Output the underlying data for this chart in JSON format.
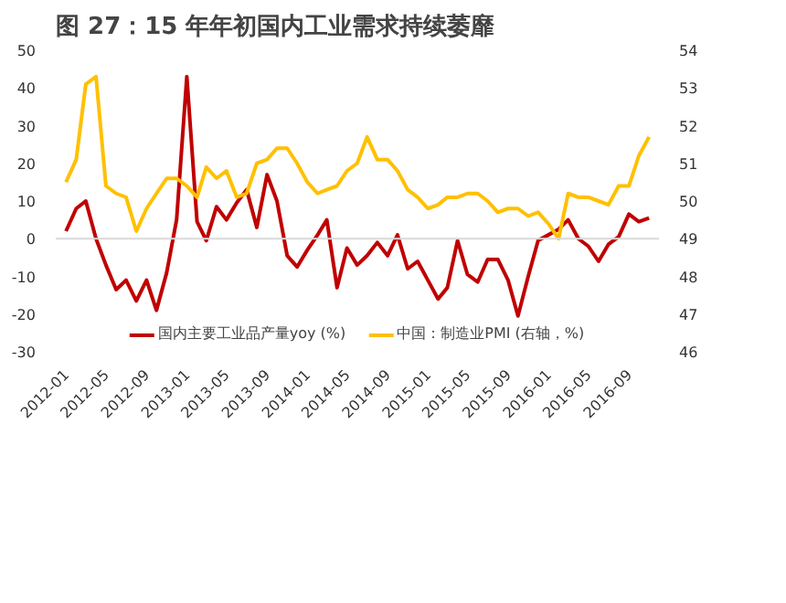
{
  "chart_data": {
    "type": "line",
    "title": "图 27：15 年年初国内工业需求持续萎靡",
    "x": [
      "2012-01",
      "2012-02",
      "2012-03",
      "2012-04",
      "2012-05",
      "2012-06",
      "2012-07",
      "2012-08",
      "2012-09",
      "2012-10",
      "2012-11",
      "2012-12",
      "2013-01",
      "2013-02",
      "2013-03",
      "2013-04",
      "2013-05",
      "2013-06",
      "2013-07",
      "2013-08",
      "2013-09",
      "2013-10",
      "2013-11",
      "2013-12",
      "2014-01",
      "2014-02",
      "2014-03",
      "2014-04",
      "2014-05",
      "2014-06",
      "2014-07",
      "2014-08",
      "2014-09",
      "2014-10",
      "2014-11",
      "2014-12",
      "2015-01",
      "2015-02",
      "2015-03",
      "2015-04",
      "2015-05",
      "2015-06",
      "2015-07",
      "2015-08",
      "2015-09",
      "2015-10",
      "2015-11",
      "2015-12",
      "2016-01",
      "2016-02",
      "2016-03",
      "2016-04",
      "2016-05",
      "2016-06",
      "2016-07",
      "2016-08",
      "2016-09",
      "2016-10",
      "2016-11"
    ],
    "series": [
      {
        "name": "国内主要工业品产量yoy (%)",
        "color": "#c00000",
        "values": [
          2,
          8,
          10,
          0,
          -7,
          -13.5,
          -11,
          -16.5,
          -11,
          -19,
          -9,
          5,
          43,
          4.5,
          -0.5,
          8.5,
          5,
          9.5,
          13,
          3,
          17,
          10,
          -4.5,
          -7.5,
          -3,
          1,
          5,
          -13,
          -2.5,
          -7,
          -4.5,
          -1,
          -4.5,
          1,
          -8,
          -6,
          -11,
          -16,
          -13,
          -0.5,
          -9.5,
          -11.5,
          -5.5,
          -5.5,
          -11,
          -20.5,
          -10,
          -0.5,
          1,
          2.5,
          5,
          0,
          -2,
          -6,
          -1.5,
          0.5,
          6.5,
          4.5,
          5.5
        ]
      },
      {
        "name": "中国：制造业PMI (右轴，%)",
        "color": "#ffc000",
        "axis": "y2",
        "values": [
          50.5,
          51.1,
          53.1,
          53.3,
          50.4,
          50.2,
          50.1,
          49.2,
          49.8,
          50.2,
          50.6,
          50.6,
          50.4,
          50.1,
          50.9,
          50.6,
          50.8,
          50.1,
          50.2,
          51.0,
          51.1,
          51.4,
          51.4,
          51.0,
          50.5,
          50.2,
          50.3,
          50.4,
          50.8,
          51.0,
          51.7,
          51.1,
          51.1,
          50.8,
          50.3,
          50.1,
          49.8,
          49.9,
          50.1,
          50.1,
          50.2,
          50.2,
          50.0,
          49.7,
          49.8,
          49.8,
          49.6,
          49.7,
          49.4,
          49.0,
          50.2,
          50.1,
          50.1,
          50.0,
          49.9,
          50.4,
          50.4,
          51.2,
          51.7
        ]
      }
    ],
    "xlim": [
      "2011-12",
      "2016-12"
    ],
    "xticks": [
      "2012-01",
      "2012-05",
      "2012-09",
      "2013-01",
      "2013-05",
      "2013-09",
      "2014-01",
      "2014-05",
      "2014-09",
      "2015-01",
      "2015-05",
      "2015-09",
      "2016-01",
      "2016-05",
      "2016-09"
    ],
    "ylim": [
      -30,
      50
    ],
    "yticks": [
      -30,
      -20,
      -10,
      0,
      10,
      20,
      30,
      40,
      50
    ],
    "y2lim": [
      46,
      54
    ],
    "y2ticks": [
      46,
      47,
      48,
      49,
      50,
      51,
      52,
      53,
      54
    ],
    "ref_lines": [
      {
        "axis": "y",
        "value": 0,
        "color": "#d9d9d9"
      }
    ],
    "grid": false,
    "legend": "bottom",
    "marker": "none",
    "line_style": "solid"
  }
}
